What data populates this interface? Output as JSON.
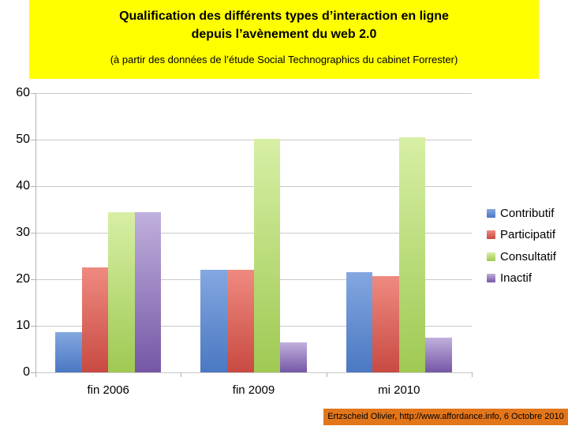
{
  "header": {
    "title_line1": "Qualification des différents types d’interaction en ligne",
    "title_line2": "depuis l’avènement du web 2.0",
    "subtitle": "(à partir des données de l’étude Social Technographics du cabinet Forrester)",
    "background": "#FFFF00"
  },
  "chart_data": {
    "type": "bar",
    "title": "",
    "categories": [
      "fin 2006",
      "fin 2009",
      "mi 2010"
    ],
    "series": [
      {
        "name": "Contributif",
        "color_top": "#84A7E0",
        "color_bottom": "#4A78C2",
        "values": [
          8.7,
          22,
          21.5
        ]
      },
      {
        "name": "Participatif",
        "color_top": "#EF8A80",
        "color_bottom": "#C84A42",
        "values": [
          22.5,
          22,
          20.7
        ]
      },
      {
        "name": "Consultatif",
        "color_top": "#D7EFA5",
        "color_bottom": "#9FC953",
        "values": [
          34.5,
          50.2,
          50.5
        ]
      },
      {
        "name": "Inactif",
        "color_top": "#C0B0DD",
        "color_bottom": "#7557A6",
        "values": [
          34.4,
          6.5,
          7.5
        ]
      }
    ],
    "xlabel": "",
    "ylabel": "",
    "ylim": [
      0,
      60
    ],
    "yticks": [
      0,
      10,
      20,
      30,
      40,
      50,
      60
    ],
    "grid": true,
    "legend_position": "right",
    "gridline_color": "#C9C9C9",
    "axis_color": "#B2B2B2"
  },
  "footer": {
    "credit": "Ertzscheid Olivier, http://www.affordance.info, 6 Octobre 2010",
    "background": "#E2761B"
  }
}
